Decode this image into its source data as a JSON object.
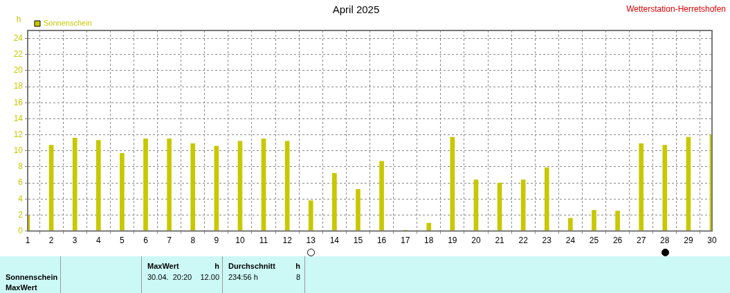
{
  "chart_data": {
    "type": "bar",
    "title": "April 2025",
    "ylabel": "h",
    "x": [
      1,
      2,
      3,
      4,
      5,
      6,
      7,
      8,
      9,
      10,
      11,
      12,
      13,
      14,
      15,
      16,
      17,
      18,
      19,
      20,
      21,
      22,
      23,
      24,
      25,
      26,
      27,
      28,
      29,
      30
    ],
    "series": [
      {
        "name": "Sonnenschein",
        "color": "#c8c800",
        "values": [
          1.9,
          10.7,
          11.6,
          11.3,
          9.7,
          11.5,
          11.5,
          10.9,
          10.6,
          11.2,
          11.5,
          11.2,
          3.8,
          7.2,
          5.2,
          8.7,
          0.1,
          1.0,
          11.7,
          6.4,
          6.0,
          6.4,
          7.9,
          1.6,
          2.6,
          2.5,
          10.9,
          10.7,
          11.7,
          12.0
        ]
      }
    ],
    "xlim": [
      1,
      30
    ],
    "xticks": [
      1,
      2,
      3,
      4,
      5,
      6,
      7,
      8,
      9,
      10,
      11,
      12,
      13,
      14,
      15,
      16,
      17,
      18,
      19,
      20,
      21,
      22,
      23,
      24,
      25,
      26,
      27,
      28,
      29,
      30
    ],
    "ylim": [
      0,
      25
    ],
    "yticks": [
      0,
      2,
      4,
      6,
      8,
      10,
      12,
      14,
      16,
      18,
      20,
      22,
      24
    ],
    "grid": true,
    "legend": "top left",
    "annotations": [
      "Wetterstation-Herretshofen",
      "Sonnenschein",
      "MaxWert",
      "MaxWert",
      "h",
      "30.04.  20:20",
      "12.00",
      "Durchschnitt",
      "h",
      "234:56 h",
      "8"
    ]
  }
}
